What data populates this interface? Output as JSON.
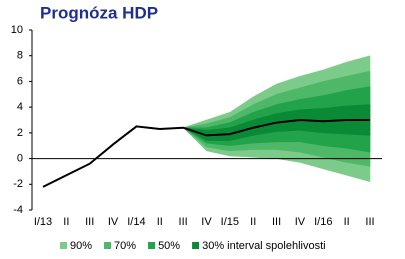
{
  "chart_data": {
    "type": "fan",
    "title": "Prognóza HDP",
    "categories": [
      "I/13",
      "II",
      "III",
      "IV",
      "I/14",
      "II",
      "III",
      "IV",
      "I/15",
      "II",
      "III",
      "IV",
      "I/16",
      "II",
      "III"
    ],
    "values": [
      -2.2,
      -1.3,
      -0.4,
      1.1,
      2.5,
      2.3,
      2.4,
      1.8,
      1.9,
      2.4,
      2.8,
      3.0,
      2.9,
      3.0,
      3.0
    ],
    "color": "#000000",
    "bands": [
      {
        "name": "90%",
        "color": "#7dcb8a",
        "high": [
          null,
          null,
          null,
          null,
          null,
          null,
          2.4,
          3.0,
          3.6,
          4.8,
          5.8,
          6.4,
          6.9,
          7.5,
          8.0
        ],
        "low": [
          null,
          null,
          null,
          null,
          null,
          null,
          2.4,
          0.6,
          0.2,
          0.1,
          0.0,
          -0.3,
          -0.8,
          -1.3,
          -1.8
        ]
      },
      {
        "name": "70%",
        "color": "#4fb868",
        "high": [
          null,
          null,
          null,
          null,
          null,
          null,
          2.4,
          2.7,
          3.2,
          4.2,
          5.0,
          5.5,
          6.0,
          6.4,
          6.8
        ],
        "low": [
          null,
          null,
          null,
          null,
          null,
          null,
          2.4,
          0.9,
          0.6,
          0.7,
          0.7,
          0.5,
          0.1,
          -0.3,
          -0.6
        ]
      },
      {
        "name": "50%",
        "color": "#22a24a",
        "high": [
          null,
          null,
          null,
          null,
          null,
          null,
          2.4,
          2.4,
          2.8,
          3.6,
          4.2,
          4.6,
          4.9,
          5.3,
          5.6
        ],
        "low": [
          null,
          null,
          null,
          null,
          null,
          null,
          2.4,
          1.2,
          1.0,
          1.2,
          1.3,
          1.3,
          1.0,
          0.8,
          0.5
        ]
      },
      {
        "name": "30% interval spolehlivosti",
        "color": "#0a8a35",
        "high": [
          null,
          null,
          null,
          null,
          null,
          null,
          2.4,
          2.2,
          2.4,
          3.0,
          3.5,
          3.8,
          3.9,
          4.1,
          4.2
        ],
        "low": [
          null,
          null,
          null,
          null,
          null,
          null,
          2.4,
          1.4,
          1.4,
          1.8,
          2.1,
          2.2,
          2.0,
          1.9,
          1.8
        ]
      }
    ],
    "ylim": [
      -4,
      10
    ],
    "yticks": [
      -4,
      -2,
      0,
      2,
      4,
      6,
      8,
      10
    ]
  }
}
